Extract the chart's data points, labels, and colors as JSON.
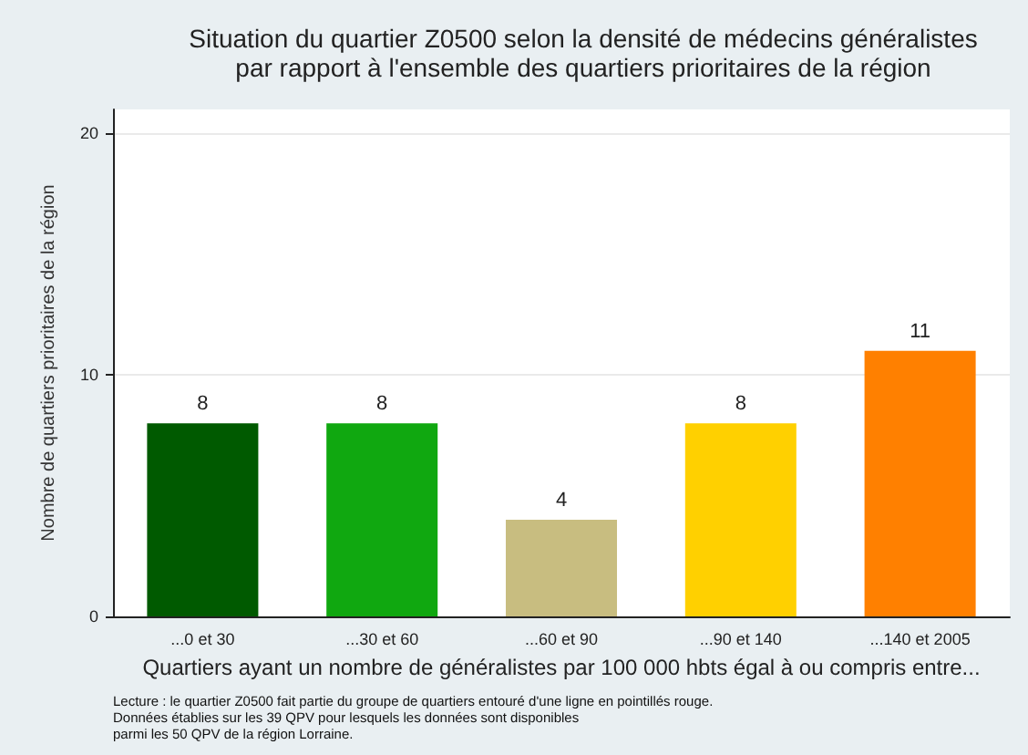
{
  "chart_data": {
    "type": "bar",
    "title": "Situation du quartier Z0500 selon la densité de médecins généralistes\npar rapport à l'ensemble des quartiers prioritaires de la région",
    "xlabel": "Quartiers ayant un nombre de généralistes par 100 000 hbts égal à ou compris entre...",
    "ylabel": "Nombre de quartiers prioritaires de la région",
    "categories": [
      "...0 et 30",
      "...30 et 60",
      "...60 et 90",
      "...90 et 140",
      "...140 et 2005"
    ],
    "values": [
      8,
      8,
      4,
      8,
      11
    ],
    "colors": [
      "#005a00",
      "#10a810",
      "#c8bd80",
      "#ffd000",
      "#ff8000"
    ],
    "data_labels": true,
    "ylim": [
      0,
      21
    ],
    "yticks": [
      0,
      10,
      20
    ],
    "grid": "y",
    "annotations": [
      "Lecture : le quartier Z0500 fait partie du groupe de quartiers entouré d'une ligne en pointillés rouge.\nDonnées établies sur les 39 QPV pour lesquels les données sont disponibles\nparmi les 50 QPV de la région Lorraine."
    ]
  }
}
